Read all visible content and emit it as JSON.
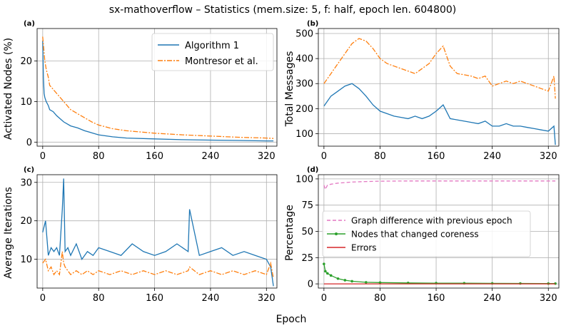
{
  "figure": {
    "title": "sx-mathoverflow – Statistics (mem.size: 5, f: half, epoch len. 604800)",
    "xlabel": "Epoch"
  },
  "colors": {
    "blue": "#1f77b4",
    "orange": "#ff7f0e",
    "pink": "#e377c2",
    "green": "#2ca02c",
    "red": "#d62728"
  },
  "chart_data": [
    {
      "panel": "(a)",
      "type": "line",
      "ylabel": "Activated Nodes (%)",
      "xlim": [
        -8,
        335
      ],
      "ylim": [
        -1,
        28
      ],
      "xticks": [
        0,
        80,
        160,
        240,
        320
      ],
      "yticks": [
        0,
        10,
        20
      ],
      "legend": "top-right",
      "series": [
        {
          "name": "Algorithm 1",
          "color": "#1f77b4",
          "style": "solid",
          "x": [
            0,
            1,
            2,
            3,
            5,
            8,
            10,
            15,
            20,
            30,
            40,
            50,
            60,
            70,
            80,
            100,
            120,
            160,
            200,
            240,
            280,
            320,
            330
          ],
          "y": [
            25,
            16,
            12,
            11,
            10,
            9,
            8,
            7.5,
            6.5,
            5,
            4,
            3.5,
            2.8,
            2.3,
            1.8,
            1.3,
            1.0,
            0.8,
            0.6,
            0.5,
            0.4,
            0.3,
            0.3
          ]
        },
        {
          "name": "Montresor et al.",
          "color": "#ff7f0e",
          "style": "dashdot",
          "x": [
            0,
            1,
            2,
            3,
            5,
            8,
            10,
            15,
            20,
            30,
            40,
            50,
            60,
            70,
            80,
            100,
            120,
            160,
            200,
            240,
            280,
            320,
            330
          ],
          "y": [
            26,
            24,
            22,
            20,
            18,
            16,
            14,
            13,
            12,
            10,
            8,
            7,
            6,
            5,
            4.2,
            3.3,
            2.8,
            2.2,
            1.8,
            1.5,
            1.2,
            1.0,
            0.9
          ]
        }
      ]
    },
    {
      "panel": "(b)",
      "type": "line",
      "ylabel": "Total Messages",
      "xlim": [
        -8,
        335
      ],
      "ylim": [
        50,
        520
      ],
      "xticks": [
        0,
        80,
        160,
        240,
        320
      ],
      "yticks": [
        100,
        200,
        300,
        400,
        500
      ],
      "series": [
        {
          "name": "Algorithm 1",
          "color": "#1f77b4",
          "style": "solid",
          "x": [
            0,
            10,
            20,
            30,
            40,
            50,
            60,
            70,
            80,
            90,
            100,
            110,
            120,
            130,
            140,
            150,
            160,
            170,
            180,
            190,
            200,
            210,
            220,
            230,
            240,
            250,
            260,
            270,
            280,
            290,
            300,
            310,
            320,
            328,
            330
          ],
          "y": [
            210,
            250,
            270,
            290,
            300,
            280,
            250,
            215,
            190,
            180,
            170,
            165,
            160,
            170,
            160,
            170,
            190,
            215,
            160,
            155,
            150,
            145,
            140,
            150,
            130,
            130,
            140,
            130,
            130,
            125,
            120,
            115,
            110,
            130,
            55
          ]
        },
        {
          "name": "Montresor et al.",
          "color": "#ff7f0e",
          "style": "dashdot",
          "x": [
            0,
            10,
            20,
            30,
            40,
            50,
            60,
            70,
            80,
            90,
            100,
            110,
            120,
            130,
            140,
            150,
            160,
            170,
            180,
            190,
            200,
            210,
            220,
            230,
            240,
            250,
            260,
            270,
            280,
            290,
            300,
            310,
            320,
            328,
            330
          ],
          "y": [
            300,
            340,
            380,
            420,
            460,
            480,
            470,
            440,
            400,
            380,
            370,
            360,
            350,
            340,
            360,
            380,
            420,
            450,
            370,
            340,
            335,
            330,
            320,
            330,
            290,
            300,
            310,
            300,
            310,
            300,
            290,
            280,
            270,
            330,
            240
          ]
        }
      ]
    },
    {
      "panel": "(c)",
      "type": "line",
      "ylabel": "Average Iterations",
      "xlim": [
        -8,
        335
      ],
      "ylim": [
        2.5,
        32
      ],
      "xticks": [
        0,
        80,
        160,
        240,
        320
      ],
      "yticks": [
        10,
        20,
        30
      ],
      "series": [
        {
          "name": "Algorithm 1",
          "color": "#1f77b4",
          "style": "solid",
          "x": [
            0,
            4,
            8,
            12,
            16,
            20,
            24,
            28,
            30,
            32,
            36,
            40,
            48,
            56,
            64,
            72,
            80,
            96,
            112,
            128,
            144,
            160,
            176,
            192,
            208,
            210,
            224,
            240,
            256,
            272,
            288,
            304,
            320,
            326,
            330
          ],
          "y": [
            17,
            20,
            11,
            13,
            12,
            13,
            11,
            23,
            31,
            12,
            13,
            11,
            14,
            10,
            12,
            11,
            13,
            12,
            11,
            14,
            12,
            11,
            12,
            14,
            12,
            23,
            11,
            12,
            13,
            11,
            12,
            11,
            10,
            8,
            3
          ]
        },
        {
          "name": "Montresor et al.",
          "color": "#ff7f0e",
          "style": "dashdot",
          "x": [
            0,
            4,
            8,
            12,
            16,
            20,
            24,
            28,
            30,
            32,
            36,
            40,
            48,
            56,
            64,
            72,
            80,
            96,
            112,
            128,
            144,
            160,
            176,
            192,
            208,
            210,
            224,
            240,
            256,
            272,
            288,
            304,
            320,
            326,
            330
          ],
          "y": [
            9,
            10,
            7,
            8,
            6,
            7,
            6,
            12,
            9,
            8,
            7,
            6,
            7,
            6,
            7,
            6,
            7,
            6,
            7,
            6,
            7,
            6,
            7,
            6,
            7,
            8,
            6,
            7,
            6,
            7,
            6,
            7,
            6,
            9,
            5
          ]
        }
      ]
    },
    {
      "panel": "(d)",
      "type": "line",
      "ylabel": "Percentage",
      "xlim": [
        -8,
        335
      ],
      "ylim": [
        -4,
        104
      ],
      "xticks": [
        0,
        80,
        160,
        240,
        320
      ],
      "yticks": [
        0,
        25,
        50,
        75,
        100
      ],
      "legend": "center",
      "series": [
        {
          "name": "Graph difference with previous epoch",
          "color": "#e377c2",
          "style": "dashed",
          "x": [
            0,
            2,
            5,
            10,
            20,
            40,
            60,
            80,
            120,
            160,
            200,
            240,
            280,
            320,
            330
          ],
          "y": [
            94,
            90,
            94,
            95,
            96,
            97,
            97.5,
            97.8,
            98,
            98,
            98,
            98,
            98,
            98,
            98
          ]
        },
        {
          "name": "Nodes that changed coreness",
          "color": "#2ca02c",
          "style": "solid-marker",
          "x": [
            0,
            2,
            5,
            10,
            20,
            30,
            40,
            60,
            80,
            120,
            160,
            200,
            240,
            280,
            320,
            330
          ],
          "y": [
            19,
            12,
            10,
            8,
            5,
            3.5,
            2.5,
            1.5,
            1.2,
            0.9,
            0.7,
            0.6,
            0.5,
            0.4,
            0.3,
            0.3
          ]
        },
        {
          "name": "Errors",
          "color": "#d62728",
          "style": "solid",
          "x": [
            0,
            330
          ],
          "y": [
            0,
            0
          ]
        }
      ]
    }
  ]
}
